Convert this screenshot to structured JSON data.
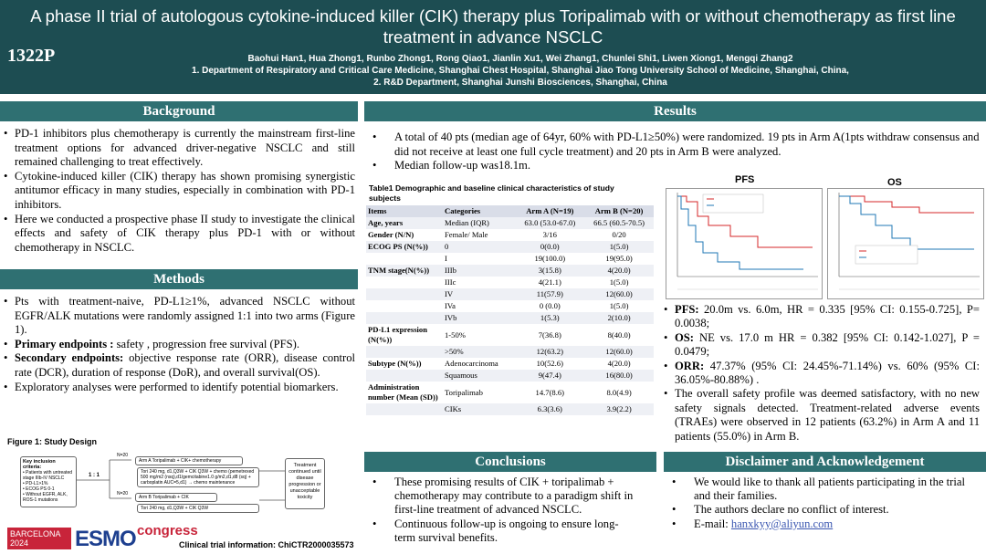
{
  "header": {
    "title": "A phase II trial of autologous cytokine-induced killer (CIK) therapy plus Toripalimab with or without chemotherapy as first line treatment in advance NSCLC",
    "poster_code": "1322P",
    "authors": "Baohui Han1, Hua Zhong1, Runbo Zhong1, Rong Qiao1, Jianlin Xu1, Wei Zhang1, Chunlei Shi1, Liwen Xiong1, Mengqi Zhang2",
    "affiliation1": "1. Department of Respiratory and Critical Care Medicine, Shanghai Chest Hospital, Shanghai Jiao Tong University School of Medicine, Shanghai, China,",
    "affiliation2": "2. R&D Department, Shanghai Junshi Biosciences, Shanghai, China"
  },
  "background": {
    "heading": "Background",
    "items": [
      "PD-1 inhibitors plus chemotherapy is currently the mainstream first-line treatment options for advanced driver-negative NSCLC and still remained challenging to treat effectively.",
      "Cytokine-induced killer (CIK) therapy has shown promising synergistic antitumor efficacy in many studies, especially in combination with PD-1 inhibitors.",
      "Here we conducted a prospective phase II study to investigate the clinical effects and safety of CIK therapy plus PD-1 with or without chemotherapy in NSCLC."
    ]
  },
  "methods": {
    "heading": "Methods",
    "item1": "Pts with treatment-naive, PD-L1≥1%, advanced NSCLC without EGFR/ALK mutations were randomly assigned 1:1 into two arms (Figure 1).",
    "item2_label": "Primary endpoints :",
    "item2_text": " safety , progression free survival (PFS).",
    "item3_label": "Secondary endpoints:",
    "item3_text": " objective response rate (ORR), disease control rate (DCR), duration of response (DoR), and overall survival(OS).",
    "item4": "Exploratory analyses were performed to identify potential biomarkers.",
    "figure_title": "Figure 1: Study Design",
    "criteria_title": "Key inclusion criteria:",
    "criteria": [
      "Patients with untreated stage IIIb-IV NSCLC",
      "PD-L1>1%",
      "ECOG PS 0-1",
      "Without EGFR, ALK, ROS-1 mutations"
    ],
    "ratio": "1 : 1",
    "n_top": "N=20",
    "n_bottom": "N=20",
    "arm_a": "Arm A Toripalimab + CIK+ chemotherapy",
    "arm_a_detail": "Tori 240 mg, d1,Q3W + CIK Q3W + chemo (pemetrexed 500 mg/m2 (nsq),d1/gemcitabine1.0 g/m2,d1,d8 (sq) + carboplatin AUC=5,d1) → chemo maintenance",
    "arm_b": "Arm B Toripalimab + CIK",
    "arm_b_detail": "Tori 240 mg, d1,Q3W + CIK Q3W",
    "treatment_box": "Treatment continued until disease progression or unacceptable toxicity"
  },
  "results": {
    "heading": "Results",
    "item1": "A total of 40 pts (median age of 64yr, 60% with PD-L1≥50%) were randomized. 19 pts in Arm A(1pts withdraw consensus and did not receive at least one full cycle treatment) and 20 pts in Arm B were analyzed.",
    "item2": "Median follow-up was18.1m.",
    "table_caption": "Table1 Demographic and baseline clinical characteristics of study subjects",
    "table": {
      "headers": [
        "Items",
        "Categories",
        "Arm A (N=19)",
        "Arm B (N=20)"
      ],
      "rows": [
        [
          "Age, years",
          "Median (IQR)",
          "63.0 (53.0-67.0)",
          "66.5 (60.5-70.5)"
        ],
        [
          "Gender (N/N)",
          "Female/ Male",
          "3/16",
          "0/20"
        ],
        [
          "ECOG PS (N(%))",
          "0",
          "0(0.0)",
          "1(5.0)"
        ],
        [
          "",
          "I",
          "19(100.0)",
          "19(95.0)"
        ],
        [
          "TNM stage(N(%))",
          "IIIb",
          "3(15.8)",
          "4(20.0)"
        ],
        [
          "",
          "IIIc",
          "4(21.1)",
          "1(5.0)"
        ],
        [
          "",
          "IV",
          "11(57.9)",
          "12(60.0)"
        ],
        [
          "",
          "IVa",
          "0 (0.0)",
          "1(5.0)"
        ],
        [
          "",
          "IVb",
          "1(5.3)",
          "2(10.0)"
        ],
        [
          "PD-L1 expression (N(%))",
          "1-50%",
          "7(36.8)",
          "8(40.0)"
        ],
        [
          "",
          ">50%",
          "12(63.2)",
          "12(60.0)"
        ],
        [
          "Subtype (N(%))",
          "Adenocarcinoma",
          "10(52.6)",
          "4(20.0)"
        ],
        [
          "",
          "Squamous",
          "9(47.4)",
          "16(80.0)"
        ],
        [
          "Administration number (Mean (SD))",
          "Toripalimab",
          "14.7(8.6)",
          "8.0(4.9)"
        ],
        [
          "",
          "CIKs",
          "6.3(3.6)",
          "3.9(2.2)"
        ]
      ]
    },
    "pfs_label": "PFS",
    "os_label": "OS",
    "pfs_result_label": "PFS:",
    "pfs_result": " 20.0m vs. 6.0m, HR = 0.335 [95% CI: 0.155-0.725], P= 0.0038;",
    "os_result_label": "OS:",
    "os_result": " NE vs. 17.0 m HR = 0.382 [95% CI: 0.142-1.027], P = 0.0479;",
    "orr_result_label": "ORR:",
    "orr_result": " 47.37% (95% CI: 24.45%-71.14%) vs. 60% (95% CI: 36.05%-80.88%) .",
    "safety": "The overall safety profile was deemed satisfactory, with no new safety signals detected. Treatment-related adverse events (TRAEs) were observed in 12 patients (63.2%) in Arm A and 11 patients (55.0%) in Arm B."
  },
  "conclusions": {
    "heading": "Conclusions",
    "items": [
      "These promising results of CIK + toripalimab + chemotherapy may contribute to a paradigm shift in first-line treatment of advanced NSCLC.",
      "Continuous follow-up is ongoing to ensure long-term survival benefits."
    ]
  },
  "disclaimer": {
    "heading": "Disclaimer and Acknowledgement",
    "items": [
      "We would like to thank all patients participating in the trial and their families.",
      "The authors declare no conflict of interest."
    ],
    "email_label": "E-mail: ",
    "email": "hanxkyy@aliyun.com"
  },
  "footer": {
    "city": "BARCELONA",
    "year": "2024",
    "brand": "ESMO",
    "congress": "congress",
    "trial": "Clinical trial information: ChiCTR2000035573"
  },
  "colors": {
    "header": "#1d4d52",
    "section": "#2f7072",
    "arm_a": "#d62728",
    "arm_b": "#1f77b4"
  }
}
